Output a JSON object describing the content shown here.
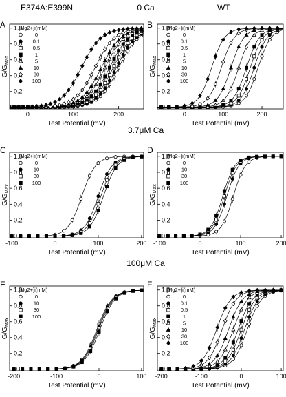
{
  "figure": {
    "column_titles": [
      "E374A:E399N",
      "WT"
    ],
    "row_titles": [
      "0 Ca",
      "3.7μM Ca",
      "100μM Ca"
    ]
  },
  "chart_data": [
    {
      "panel": "A",
      "type": "scatter",
      "fit": "boltzmann",
      "xlabel": "Test Potential (mV)",
      "ylabel": "G/GMax",
      "xlim": [
        -40,
        255
      ],
      "ylim": [
        -0.02,
        1.05
      ],
      "xticks": [
        0,
        100,
        200
      ],
      "yticks": [
        0.0,
        0.2,
        0.4,
        0.6,
        0.8,
        1.0
      ],
      "legend_title": "[Mg2+]i(mM)",
      "series": [
        {
          "name": "0",
          "marker": "circle-open",
          "v_half": 200,
          "slope": 22
        },
        {
          "name": "0.1",
          "marker": "circle-filled",
          "v_half": 195,
          "slope": 22
        },
        {
          "name": "0.5",
          "marker": "square-open",
          "v_half": 188,
          "slope": 22
        },
        {
          "name": "1",
          "marker": "square-filled",
          "v_half": 180,
          "slope": 22
        },
        {
          "name": "5",
          "marker": "triangle-open",
          "v_half": 170,
          "slope": 22
        },
        {
          "name": "10",
          "marker": "triangle-filled",
          "v_half": 162,
          "slope": 22
        },
        {
          "name": "30",
          "marker": "diamond-open",
          "v_half": 148,
          "slope": 22
        },
        {
          "name": "100",
          "marker": "diamond-filled",
          "v_half": 118,
          "slope": 22
        }
      ]
    },
    {
      "panel": "B",
      "type": "scatter",
      "fit": "boltzmann",
      "xlabel": "Test Potential (mV)",
      "ylabel": "G/GMax",
      "xlim": [
        -70,
        255
      ],
      "ylim": [
        -0.02,
        1.05
      ],
      "xticks": [
        0,
        100,
        200
      ],
      "yticks": [
        0.0,
        0.2,
        0.4,
        0.6,
        0.8,
        1.0
      ],
      "legend_title": "[Mg2+]i(mM)",
      "series": [
        {
          "name": "0",
          "marker": "circle-open",
          "v_half": 190,
          "slope": 17
        },
        {
          "name": "0.1",
          "marker": "circle-filled",
          "v_half": 180,
          "slope": 17
        },
        {
          "name": "0.5",
          "marker": "square-open",
          "v_half": 170,
          "slope": 17
        },
        {
          "name": "1",
          "marker": "square-filled",
          "v_half": 160,
          "slope": 17
        },
        {
          "name": "5",
          "marker": "triangle-open",
          "v_half": 140,
          "slope": 17
        },
        {
          "name": "10",
          "marker": "triangle-filled",
          "v_half": 120,
          "slope": 17
        },
        {
          "name": "30",
          "marker": "diamond-open",
          "v_half": 95,
          "slope": 17
        },
        {
          "name": "100",
          "marker": "diamond-filled",
          "v_half": 70,
          "slope": 17
        }
      ]
    },
    {
      "panel": "C",
      "type": "scatter",
      "fit": "boltzmann",
      "xlabel": "Test Potential (mV)",
      "ylabel": "G/GMax",
      "xlim": [
        -105,
        205
      ],
      "ylim": [
        -0.02,
        1.05
      ],
      "xticks": [
        -100,
        0,
        100,
        200
      ],
      "yticks": [
        0.0,
        0.2,
        0.4,
        0.6,
        0.8,
        1.0
      ],
      "legend_title": "[Mg2+]i(mM)",
      "series": [
        {
          "name": "0",
          "marker": "circle-open",
          "v_half": 62,
          "slope": 16
        },
        {
          "name": "10",
          "marker": "circle-filled",
          "v_half": 100,
          "slope": 16
        },
        {
          "name": "30",
          "marker": "square-open",
          "v_half": 106,
          "slope": 16
        },
        {
          "name": "100",
          "marker": "square-filled",
          "v_half": 112,
          "slope": 16
        }
      ]
    },
    {
      "panel": "D",
      "type": "scatter",
      "fit": "boltzmann",
      "xlabel": "Test Potential (mV)",
      "ylabel": "G/GMax",
      "xlim": [
        -105,
        205
      ],
      "ylim": [
        -0.02,
        1.05
      ],
      "xticks": [
        -100,
        0,
        100,
        200
      ],
      "yticks": [
        0.0,
        0.2,
        0.4,
        0.6,
        0.8,
        1.0
      ],
      "legend_title": "[Mg2+]i(mM)",
      "series": [
        {
          "name": "0",
          "marker": "circle-open",
          "v_half": 82,
          "slope": 15
        },
        {
          "name": "10",
          "marker": "circle-filled",
          "v_half": 66,
          "slope": 15
        },
        {
          "name": "30",
          "marker": "square-open",
          "v_half": 60,
          "slope": 15
        },
        {
          "name": "100",
          "marker": "square-filled",
          "v_half": 56,
          "slope": 15
        }
      ]
    },
    {
      "panel": "E",
      "type": "scatter",
      "fit": "boltzmann",
      "xlabel": "Test Potential (mV)",
      "ylabel": "G/GMax",
      "xlim": [
        -210,
        105
      ],
      "ylim": [
        -0.02,
        1.05
      ],
      "xticks": [
        -200,
        -100,
        0,
        100
      ],
      "yticks": [
        0.0,
        0.2,
        0.4,
        0.6,
        0.8,
        1.0
      ],
      "legend_title": "[Mg2+]i(mM)",
      "series": [
        {
          "name": "0",
          "marker": "circle-open",
          "v_half": -5,
          "slope": 18
        },
        {
          "name": "10",
          "marker": "circle-filled",
          "v_half": -3,
          "slope": 18
        },
        {
          "name": "30",
          "marker": "square-open",
          "v_half": -1,
          "slope": 18
        },
        {
          "name": "100",
          "marker": "square-filled",
          "v_half": 2,
          "slope": 18
        }
      ]
    },
    {
      "panel": "F",
      "type": "scatter",
      "fit": "boltzmann",
      "xlabel": "Test Potential (mV)",
      "ylabel": "G/GMax",
      "xlim": [
        -210,
        105
      ],
      "ylim": [
        -0.02,
        1.05
      ],
      "xticks": [
        -200,
        -100,
        0,
        100
      ],
      "yticks": [
        0.0,
        0.2,
        0.4,
        0.6,
        0.8,
        1.0
      ],
      "legend_title": "[Mg2+]i(mM)",
      "series": [
        {
          "name": "0",
          "marker": "circle-open",
          "v_half": 15,
          "slope": 18
        },
        {
          "name": "0.1",
          "marker": "circle-filled",
          "v_half": 8,
          "slope": 18
        },
        {
          "name": "0.5",
          "marker": "square-open",
          "v_half": 0,
          "slope": 18
        },
        {
          "name": "1",
          "marker": "square-filled",
          "v_half": -8,
          "slope": 18
        },
        {
          "name": "5",
          "marker": "triangle-open",
          "v_half": -20,
          "slope": 18
        },
        {
          "name": "10",
          "marker": "triangle-filled",
          "v_half": -32,
          "slope": 18
        },
        {
          "name": "30",
          "marker": "diamond-open",
          "v_half": -48,
          "slope": 18
        },
        {
          "name": "100",
          "marker": "diamond-filled",
          "v_half": -62,
          "slope": 18
        }
      ]
    }
  ]
}
